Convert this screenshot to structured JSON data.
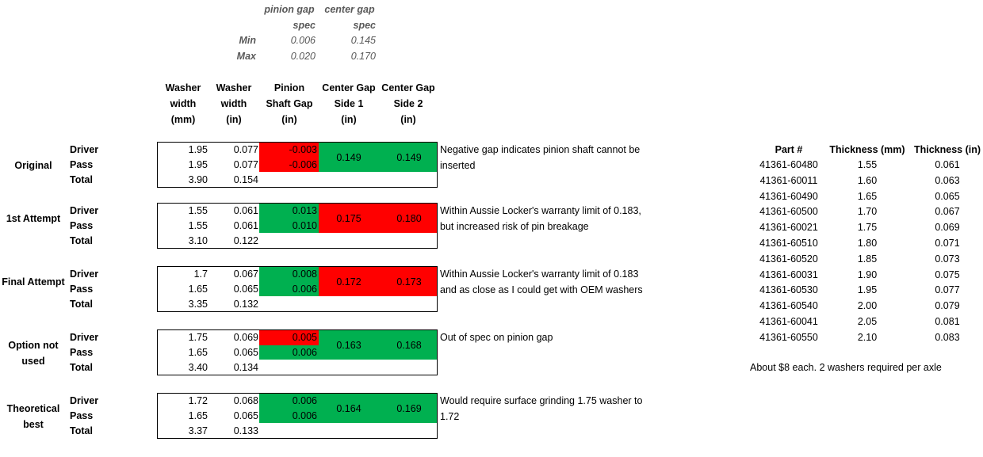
{
  "spec": {
    "col_pinion": [
      "pinion gap",
      "spec"
    ],
    "col_center": [
      "center gap",
      "spec"
    ],
    "min_label": "Min",
    "max_label": "Max",
    "min_pinion": "0.006",
    "min_center": "0.145",
    "max_pinion": "0.020",
    "max_center": "0.170"
  },
  "headers": {
    "washer_mm": [
      "Washer",
      "width",
      "(mm)"
    ],
    "washer_in": [
      "Washer",
      "width",
      "(in)"
    ],
    "pinion": [
      "Pinion",
      "Shaft Gap",
      "(in)"
    ],
    "center1": [
      "Center Gap",
      "Side 1",
      "(in)"
    ],
    "center2": [
      "Center Gap",
      "Side 2",
      "(in)"
    ]
  },
  "row_labels": {
    "driver": "Driver",
    "pass": "Pass",
    "total": "Total"
  },
  "groups": [
    {
      "name": "Original",
      "mm": [
        "1.95",
        "1.95",
        "3.90"
      ],
      "in": [
        "0.077",
        "0.077",
        "0.154"
      ],
      "pinion": [
        "-0.003",
        "-0.006"
      ],
      "pinion_status": [
        "bad",
        "bad"
      ],
      "c1": "0.149",
      "c2": "0.149",
      "center_status": "good",
      "note": "Negative gap indicates pinion shaft cannot be inserted"
    },
    {
      "name": "1st Attempt",
      "mm": [
        "1.55",
        "1.55",
        "3.10"
      ],
      "in": [
        "0.061",
        "0.061",
        "0.122"
      ],
      "pinion": [
        "0.013",
        "0.010"
      ],
      "pinion_status": [
        "good",
        "good"
      ],
      "c1": "0.175",
      "c2": "0.180",
      "center_status": "bad",
      "note": "Within Aussie Locker's warranty limit of 0.183, but increased risk of pin breakage"
    },
    {
      "name": "Final Attempt",
      "mm": [
        "1.7",
        "1.65",
        "3.35"
      ],
      "in": [
        "0.067",
        "0.065",
        "0.132"
      ],
      "pinion": [
        "0.008",
        "0.006"
      ],
      "pinion_status": [
        "good",
        "good"
      ],
      "c1": "0.172",
      "c2": "0.173",
      "center_status": "bad",
      "note": "Within Aussie Locker's warranty limit of 0.183 and as close as I could get with OEM washers"
    },
    {
      "name": "Option not used",
      "mm": [
        "1.75",
        "1.65",
        "3.40"
      ],
      "in": [
        "0.069",
        "0.065",
        "0.134"
      ],
      "pinion": [
        "0.005",
        "0.006"
      ],
      "pinion_status": [
        "bad",
        "good"
      ],
      "c1": "0.163",
      "c2": "0.168",
      "center_status": "good",
      "note": "Out of spec on pinion gap"
    },
    {
      "name": "Theoretical best",
      "mm": [
        "1.72",
        "1.65",
        "3.37"
      ],
      "in": [
        "0.068",
        "0.065",
        "0.133"
      ],
      "pinion": [
        "0.006",
        "0.006"
      ],
      "pinion_status": [
        "good",
        "good"
      ],
      "c1": "0.164",
      "c2": "0.169",
      "center_status": "good",
      "note": "Would require surface grinding 1.75 washer to 1.72"
    }
  ],
  "parts": {
    "headers": [
      "Part #",
      "Thickness (mm)",
      "Thickness (in)"
    ],
    "rows": [
      [
        "41361-60480",
        "1.55",
        "0.061"
      ],
      [
        "41361-60011",
        "1.60",
        "0.063"
      ],
      [
        "41361-60490",
        "1.65",
        "0.065"
      ],
      [
        "41361-60500",
        "1.70",
        "0.067"
      ],
      [
        "41361-60021",
        "1.75",
        "0.069"
      ],
      [
        "41361-60510",
        "1.80",
        "0.071"
      ],
      [
        "41361-60520",
        "1.85",
        "0.073"
      ],
      [
        "41361-60031",
        "1.90",
        "0.075"
      ],
      [
        "41361-60530",
        "1.95",
        "0.077"
      ],
      [
        "41361-60540",
        "2.00",
        "0.079"
      ],
      [
        "41361-60041",
        "2.05",
        "0.081"
      ],
      [
        "41361-60550",
        "2.10",
        "0.083"
      ]
    ],
    "footnote": "About $8 each.  2 washers required per axle"
  },
  "colors": {
    "bad": "#ff0000",
    "good": "#00b050"
  }
}
